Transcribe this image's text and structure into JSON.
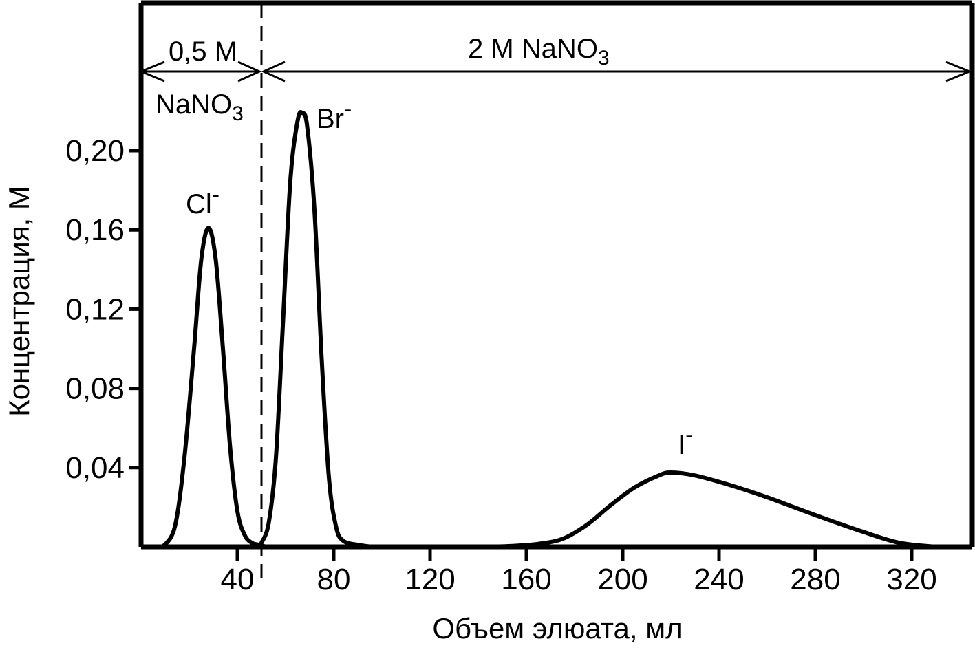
{
  "chart_data": {
    "type": "line",
    "xlabel": "Объем элюата, мл",
    "ylabel": "Концентрация, М",
    "xlim": [
      0,
      346
    ],
    "ylim": [
      0,
      0.25
    ],
    "xticks": [
      40,
      80,
      120,
      160,
      200,
      240,
      280,
      320
    ],
    "xtick_labels": [
      "40",
      "80",
      "120",
      "160",
      "200",
      "240",
      "280",
      "320"
    ],
    "yticks": [
      0.04,
      0.08,
      0.12,
      0.16,
      0.2
    ],
    "ytick_labels": [
      "0,04",
      "0,08",
      "0,12",
      "0,16",
      "0,20"
    ],
    "grid": false,
    "legend": "none",
    "series": [
      {
        "name": "Cl-",
        "x": [
          9,
          14,
          18,
          22,
          25,
          28,
          31,
          34,
          37,
          40,
          43,
          46,
          49,
          52
        ],
        "y": [
          0.0,
          0.01,
          0.045,
          0.1,
          0.145,
          0.161,
          0.145,
          0.1,
          0.05,
          0.018,
          0.006,
          0.002,
          0.001,
          0.0
        ]
      },
      {
        "name": "Br-",
        "x": [
          50,
          53,
          56,
          59,
          62,
          65,
          67,
          69,
          72,
          75,
          78,
          81,
          84,
          90,
          96
        ],
        "y": [
          0.002,
          0.012,
          0.045,
          0.115,
          0.185,
          0.215,
          0.219,
          0.212,
          0.17,
          0.095,
          0.035,
          0.01,
          0.003,
          0.001,
          0.0
        ]
      },
      {
        "name": "I-",
        "x": [
          143,
          155,
          165,
          175,
          185,
          195,
          205,
          215,
          220,
          230,
          245,
          260,
          280,
          300,
          315,
          330
        ],
        "y": [
          0.0,
          0.0005,
          0.0015,
          0.004,
          0.011,
          0.021,
          0.03,
          0.036,
          0.0375,
          0.036,
          0.031,
          0.025,
          0.016,
          0.0075,
          0.002,
          0.0
        ]
      }
    ],
    "divider_x": 50,
    "annotations": {
      "region_left_top": "0,5 М",
      "region_left_bottom": "NaNO",
      "region_left_sub": "3",
      "region_right": "2 М NaNO",
      "region_right_sub": "3",
      "peaks": [
        {
          "ion": "Cl",
          "charge": "-",
          "peak_x": 28,
          "peak_y": 0.161
        },
        {
          "ion": "Br",
          "charge": "-",
          "peak_x": 67,
          "peak_y": 0.219
        },
        {
          "ion": "I",
          "charge": "-",
          "peak_x": 220,
          "peak_y": 0.0375
        }
      ]
    },
    "colors": {
      "line": "#000000",
      "background": "#ffffff"
    }
  }
}
